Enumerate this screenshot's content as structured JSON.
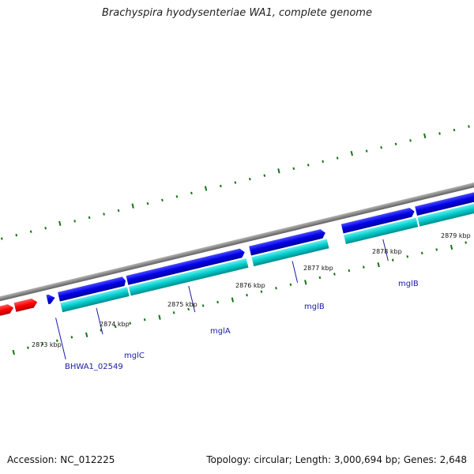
{
  "title": "Brachyspira hyodysenteriae WA1, complete genome",
  "footer": {
    "accession": "Accession: NC_012225",
    "summary": "Topology: circular; Length: 3,000,694 bp; Genes: 2,648"
  },
  "colors": {
    "backbone": "#8a8a8a",
    "forward_cds_other": "#ff0000",
    "forward_cds": "#0000e6",
    "gene_feature": "#00cccc",
    "tick": "#117711",
    "label": "#1a1aa8"
  },
  "kbp_ticks": [
    {
      "label": "2873 kbp"
    },
    {
      "label": "2874 kbp"
    },
    {
      "label": "2875 kbp"
    },
    {
      "label": "2876 kbp"
    },
    {
      "label": "2877 kbp"
    },
    {
      "label": "2878 kbp"
    },
    {
      "label": "2879 kbp"
    }
  ],
  "gene_labels": [
    {
      "text": "BHWA1_02549"
    },
    {
      "text": "mglC"
    },
    {
      "text": "mglA"
    },
    {
      "text": "mglB"
    },
    {
      "text": "mglB"
    }
  ]
}
